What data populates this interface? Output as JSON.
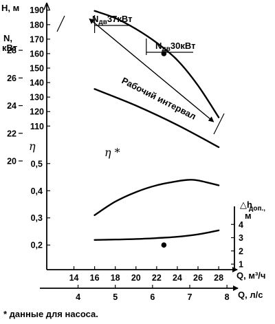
{
  "chart_data": {
    "type": "line",
    "axes": {
      "head": {
        "label_main": "H, м",
        "ticks": [
          110,
          120,
          130,
          140,
          150,
          160,
          170,
          180,
          190
        ],
        "range": [
          103,
          197
        ]
      },
      "power": {
        "label_main": "N,",
        "label_unit": "кВт",
        "ticks": [
          20,
          22,
          24,
          26,
          28
        ],
        "range": [
          19.9,
          28.9
        ]
      },
      "efficiency": {
        "label_main": "η",
        "ticks": [
          "0,2",
          "0,3",
          "0,4",
          "0,5"
        ],
        "tick_values": [
          0.2,
          0.3,
          0.4,
          0.5
        ],
        "range": [
          0.16,
          0.54
        ]
      },
      "npsh": {
        "label_main": "△h",
        "label_sub": "доп.,",
        "label_unit": "м",
        "ticks": [
          1,
          2,
          3,
          4
        ],
        "range": [
          1,
          5
        ]
      },
      "q_m3h": {
        "label": "Q, м³/ч",
        "ticks": [
          14,
          16,
          18,
          20,
          22,
          24,
          26,
          28
        ],
        "range": [
          13.2,
          29.7
        ]
      },
      "q_ls": {
        "label": "Q, л/с",
        "ticks": [
          4,
          5,
          6,
          7,
          8
        ]
      }
    },
    "series": [
      {
        "curve": "head",
        "x": [
          16,
          18,
          20,
          22,
          24,
          26,
          28
        ],
        "y": [
          189.5,
          184.5,
          177,
          167.5,
          155.5,
          138,
          116
        ]
      },
      {
        "curve": "power",
        "x": [
          16,
          20,
          24,
          28
        ],
        "y": [
          25.2,
          24.0,
          22.6,
          21.0
        ]
      },
      {
        "curve": "efficiency",
        "x": [
          16,
          18,
          20,
          22,
          24,
          25,
          26,
          28
        ],
        "y": [
          0.31,
          0.36,
          0.395,
          0.42,
          0.435,
          0.44,
          0.438,
          0.42
        ]
      },
      {
        "curve": "npsh",
        "x": [
          16,
          18,
          20,
          22,
          24,
          26,
          28
        ],
        "y": [
          2.83,
          2.86,
          2.9,
          2.97,
          3.07,
          3.25,
          3.55
        ]
      }
    ],
    "markers": [
      {
        "curve": "head",
        "x": 22.7,
        "y": 160
      },
      {
        "curve": "efficiency",
        "x": 22.7,
        "y": 0.2
      }
    ],
    "annotations": {
      "power_37": {
        "text": "37кВт",
        "sub": "дв",
        "prefix": "N",
        "x": 16.0
      },
      "power_30": {
        "text": "30кВт",
        "sub": "дв",
        "prefix": "N",
        "x": 21.0
      },
      "range_label": "Рабочий интервал",
      "eta_star": "η *",
      "footnote": "* данные для насоса."
    },
    "grid": false
  }
}
